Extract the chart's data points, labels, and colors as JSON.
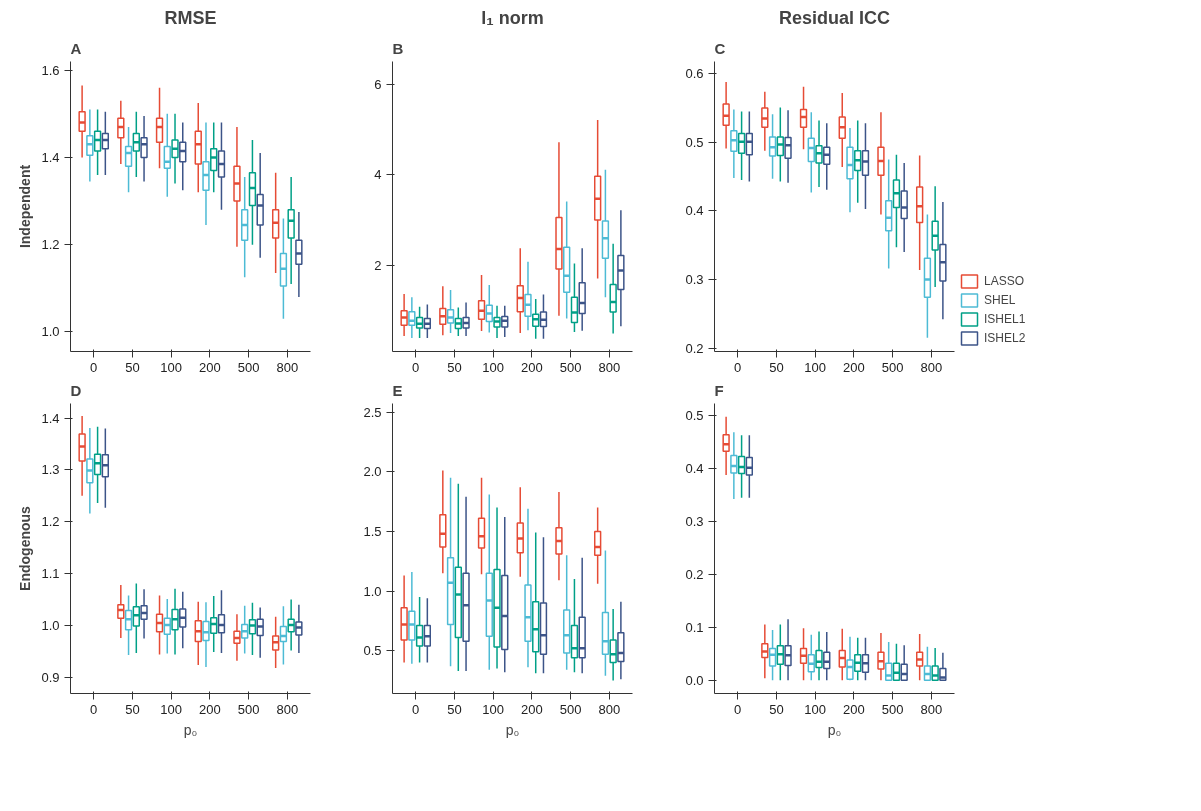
{
  "chart_data": [
    {
      "type": "box",
      "title": "RMSE",
      "ylabel": "Independent",
      "annotations": [
        "A"
      ],
      "legend": "right",
      "categories": [
        "0",
        "50",
        "100",
        "200",
        "500",
        "800"
      ],
      "ylim": [
        0.955,
        1.62
      ],
      "yticks": [
        {
          "value": 1.0,
          "label": "1.0"
        },
        {
          "value": 1.2,
          "label": "1.2"
        },
        {
          "value": 1.4,
          "label": "1.4"
        },
        {
          "value": 1.6,
          "label": "1.6"
        }
      ],
      "grid": false,
      "series": [
        {
          "name": "LASSO",
          "color": "#e64b35",
          "boxes": [
            {
              "low": 1.4,
              "q1": 1.46,
              "median": 1.48,
              "q3": 1.505,
              "high": 1.565
            },
            {
              "low": 1.385,
              "q1": 1.445,
              "median": 1.47,
              "q3": 1.49,
              "high": 1.53
            },
            {
              "low": 1.375,
              "q1": 1.435,
              "median": 1.47,
              "q3": 1.49,
              "high": 1.56
            },
            {
              "low": 1.32,
              "q1": 1.385,
              "median": 1.43,
              "q3": 1.46,
              "high": 1.525
            },
            {
              "low": 1.195,
              "q1": 1.3,
              "median": 1.34,
              "q3": 1.38,
              "high": 1.47
            },
            {
              "low": 1.135,
              "q1": 1.215,
              "median": 1.25,
              "q3": 1.28,
              "high": 1.365
            }
          ]
        },
        {
          "name": "SHEL",
          "color": "#4dbbd5",
          "boxes": [
            {
              "low": 1.345,
              "q1": 1.405,
              "median": 1.43,
              "q3": 1.45,
              "high": 1.51
            },
            {
              "low": 1.32,
              "q1": 1.38,
              "median": 1.41,
              "q3": 1.425,
              "high": 1.47
            },
            {
              "low": 1.31,
              "q1": 1.375,
              "median": 1.39,
              "q3": 1.425,
              "high": 1.5
            },
            {
              "low": 1.245,
              "q1": 1.325,
              "median": 1.36,
              "q3": 1.39,
              "high": 1.48
            },
            {
              "low": 1.125,
              "q1": 1.21,
              "median": 1.245,
              "q3": 1.28,
              "high": 1.355
            },
            {
              "low": 1.03,
              "q1": 1.105,
              "median": 1.145,
              "q3": 1.18,
              "high": 1.26
            }
          ]
        },
        {
          "name": "ISHEL1",
          "color": "#00a087",
          "boxes": [
            {
              "low": 1.36,
              "q1": 1.415,
              "median": 1.44,
              "q3": 1.46,
              "high": 1.51
            },
            {
              "low": 1.355,
              "q1": 1.415,
              "median": 1.435,
              "q3": 1.455,
              "high": 1.505
            },
            {
              "low": 1.34,
              "q1": 1.4,
              "median": 1.42,
              "q3": 1.44,
              "high": 1.5
            },
            {
              "low": 1.32,
              "q1": 1.37,
              "median": 1.4,
              "q3": 1.42,
              "high": 1.48
            },
            {
              "low": 1.2,
              "q1": 1.29,
              "median": 1.33,
              "q3": 1.365,
              "high": 1.44
            },
            {
              "low": 1.11,
              "q1": 1.215,
              "median": 1.255,
              "q3": 1.28,
              "high": 1.355
            }
          ]
        },
        {
          "name": "ISHEL2",
          "color": "#3c5488",
          "boxes": [
            {
              "low": 1.36,
              "q1": 1.42,
              "median": 1.44,
              "q3": 1.455,
              "high": 1.505
            },
            {
              "low": 1.345,
              "q1": 1.4,
              "median": 1.43,
              "q3": 1.445,
              "high": 1.495
            },
            {
              "low": 1.325,
              "q1": 1.39,
              "median": 1.415,
              "q3": 1.435,
              "high": 1.48
            },
            {
              "low": 1.28,
              "q1": 1.355,
              "median": 1.385,
              "q3": 1.415,
              "high": 1.48
            },
            {
              "low": 1.17,
              "q1": 1.245,
              "median": 1.29,
              "q3": 1.315,
              "high": 1.41
            },
            {
              "low": 1.08,
              "q1": 1.155,
              "median": 1.18,
              "q3": 1.21,
              "high": 1.275
            }
          ]
        }
      ]
    },
    {
      "type": "box",
      "title": "l₁ norm",
      "annotations": [
        "B"
      ],
      "categories": [
        "0",
        "50",
        "100",
        "200",
        "500",
        "800"
      ],
      "ylim": [
        0.1,
        6.5
      ],
      "yticks": [
        2,
        4,
        6
      ],
      "grid": false,
      "series": [
        {
          "color": "#e64b35",
          "boxes": [
            {
              "low": 0.44,
              "q1": 0.68,
              "median": 0.85,
              "q3": 1.0,
              "high": 1.37
            },
            {
              "low": 0.46,
              "q1": 0.7,
              "median": 0.88,
              "q3": 1.05,
              "high": 1.54
            },
            {
              "low": 0.55,
              "q1": 0.81,
              "median": 1.0,
              "q3": 1.22,
              "high": 1.79
            },
            {
              "low": 0.51,
              "q1": 0.98,
              "median": 1.28,
              "q3": 1.55,
              "high": 2.38
            },
            {
              "low": 0.89,
              "q1": 1.92,
              "median": 2.36,
              "q3": 3.06,
              "high": 4.72
            },
            {
              "low": 1.71,
              "q1": 3.0,
              "median": 3.47,
              "q3": 3.97,
              "high": 5.21
            }
          ]
        },
        {
          "color": "#4dbbd5",
          "boxes": [
            {
              "low": 0.4,
              "q1": 0.68,
              "median": 0.78,
              "q3": 0.98,
              "high": 1.3
            },
            {
              "low": 0.51,
              "q1": 0.73,
              "median": 0.85,
              "q3": 1.02,
              "high": 1.46
            },
            {
              "low": 0.52,
              "q1": 0.76,
              "median": 0.94,
              "q3": 1.12,
              "high": 1.57
            },
            {
              "low": 0.57,
              "q1": 0.88,
              "median": 1.13,
              "q3": 1.36,
              "high": 2.08
            },
            {
              "low": 0.83,
              "q1": 1.41,
              "median": 1.77,
              "q3": 2.4,
              "high": 3.41
            },
            {
              "low": 1.3,
              "q1": 2.16,
              "median": 2.6,
              "q3": 2.98,
              "high": 4.11
            }
          ]
        },
        {
          "color": "#00a087",
          "boxes": [
            {
              "low": 0.4,
              "q1": 0.62,
              "median": 0.71,
              "q3": 0.85,
              "high": 1.09
            },
            {
              "low": 0.44,
              "q1": 0.61,
              "median": 0.72,
              "q3": 0.83,
              "high": 1.07
            },
            {
              "low": 0.4,
              "q1": 0.64,
              "median": 0.76,
              "q3": 0.85,
              "high": 1.11
            },
            {
              "low": 0.38,
              "q1": 0.66,
              "median": 0.81,
              "q3": 0.92,
              "high": 1.26
            },
            {
              "low": 0.53,
              "q1": 0.74,
              "median": 0.96,
              "q3": 1.3,
              "high": 2.04
            },
            {
              "low": 0.5,
              "q1": 0.97,
              "median": 1.19,
              "q3": 1.58,
              "high": 2.48
            }
          ]
        },
        {
          "color": "#3c5488",
          "boxes": [
            {
              "low": 0.4,
              "q1": 0.61,
              "median": 0.71,
              "q3": 0.83,
              "high": 1.14
            },
            {
              "low": 0.44,
              "q1": 0.62,
              "median": 0.73,
              "q3": 0.85,
              "high": 1.18
            },
            {
              "low": 0.42,
              "q1": 0.64,
              "median": 0.78,
              "q3": 0.87,
              "high": 1.11
            },
            {
              "low": 0.38,
              "q1": 0.65,
              "median": 0.8,
              "q3": 0.97,
              "high": 1.36
            },
            {
              "low": 0.56,
              "q1": 0.94,
              "median": 1.17,
              "q3": 1.62,
              "high": 2.38
            },
            {
              "low": 0.66,
              "q1": 1.47,
              "median": 1.89,
              "q3": 2.22,
              "high": 3.22
            }
          ]
        }
      ]
    },
    {
      "type": "box",
      "title": "Residual ICC",
      "annotations": [
        "C"
      ],
      "categories": [
        "0",
        "50",
        "100",
        "200",
        "500",
        "800"
      ],
      "ylim": [
        0.195,
        0.618
      ],
      "yticks": [
        0.2,
        0.3,
        0.4,
        0.5,
        0.6
      ],
      "grid": false,
      "series": [
        {
          "color": "#e64b35",
          "boxes": [
            {
              "low": 0.491,
              "q1": 0.525,
              "median": 0.539,
              "q3": 0.556,
              "high": 0.588
            },
            {
              "low": 0.488,
              "q1": 0.522,
              "median": 0.535,
              "q3": 0.55,
              "high": 0.574
            },
            {
              "low": 0.49,
              "q1": 0.522,
              "median": 0.537,
              "q3": 0.548,
              "high": 0.581
            },
            {
              "low": 0.464,
              "q1": 0.506,
              "median": 0.522,
              "q3": 0.537,
              "high": 0.572
            },
            {
              "low": 0.395,
              "q1": 0.452,
              "median": 0.473,
              "q3": 0.493,
              "high": 0.544
            },
            {
              "low": 0.314,
              "q1": 0.383,
              "median": 0.407,
              "q3": 0.435,
              "high": 0.481
            }
          ]
        },
        {
          "color": "#4dbbd5",
          "boxes": [
            {
              "low": 0.448,
              "q1": 0.487,
              "median": 0.503,
              "q3": 0.517,
              "high": 0.548
            },
            {
              "low": 0.447,
              "q1": 0.48,
              "median": 0.493,
              "q3": 0.508,
              "high": 0.541
            },
            {
              "low": 0.427,
              "q1": 0.472,
              "median": 0.492,
              "q3": 0.506,
              "high": 0.544
            },
            {
              "low": 0.398,
              "q1": 0.447,
              "median": 0.467,
              "q3": 0.493,
              "high": 0.521
            },
            {
              "low": 0.316,
              "q1": 0.371,
              "median": 0.39,
              "q3": 0.415,
              "high": 0.475
            },
            {
              "low": 0.215,
              "q1": 0.274,
              "median": 0.3,
              "q3": 0.331,
              "high": 0.395
            }
          ]
        },
        {
          "color": "#00a087",
          "boxes": [
            {
              "low": 0.445,
              "q1": 0.484,
              "median": 0.501,
              "q3": 0.513,
              "high": 0.545
            },
            {
              "low": 0.443,
              "q1": 0.481,
              "median": 0.497,
              "q3": 0.508,
              "high": 0.551
            },
            {
              "low": 0.435,
              "q1": 0.47,
              "median": 0.484,
              "q3": 0.495,
              "high": 0.532
            },
            {
              "low": 0.412,
              "q1": 0.459,
              "median": 0.474,
              "q3": 0.488,
              "high": 0.532
            },
            {
              "low": 0.347,
              "q1": 0.405,
              "median": 0.426,
              "q3": 0.445,
              "high": 0.482
            },
            {
              "low": 0.289,
              "q1": 0.343,
              "median": 0.364,
              "q3": 0.385,
              "high": 0.436
            }
          ]
        },
        {
          "color": "#3c5488",
          "boxes": [
            {
              "low": 0.443,
              "q1": 0.482,
              "median": 0.501,
              "q3": 0.513,
              "high": 0.545
            },
            {
              "low": 0.441,
              "q1": 0.477,
              "median": 0.496,
              "q3": 0.507,
              "high": 0.547
            },
            {
              "low": 0.431,
              "q1": 0.468,
              "median": 0.482,
              "q3": 0.493,
              "high": 0.528
            },
            {
              "low": 0.403,
              "q1": 0.452,
              "median": 0.472,
              "q3": 0.488,
              "high": 0.528
            },
            {
              "low": 0.34,
              "q1": 0.389,
              "median": 0.405,
              "q3": 0.429,
              "high": 0.47
            },
            {
              "low": 0.242,
              "q1": 0.298,
              "median": 0.325,
              "q3": 0.351,
              "high": 0.413
            }
          ]
        }
      ]
    },
    {
      "type": "box",
      "ylabel": "Endogenous",
      "xlabel": "p₀",
      "annotations": [
        "D"
      ],
      "categories": [
        "0",
        "50",
        "100",
        "200",
        "500",
        "800"
      ],
      "ylim": [
        0.869,
        1.428
      ],
      "yticks": [
        0.9,
        {
          "value": 1.0,
          "label": "1.0"
        },
        1.1,
        1.2,
        1.3,
        1.4
      ],
      "grid": false,
      "series": [
        {
          "color": "#e64b35",
          "boxes": [
            {
              "low": 1.25,
              "q1": 1.317,
              "median": 1.345,
              "q3": 1.369,
              "high": 1.404
            },
            {
              "low": 0.976,
              "q1": 1.014,
              "median": 1.03,
              "q3": 1.04,
              "high": 1.078
            },
            {
              "low": 0.944,
              "q1": 0.988,
              "median": 1.005,
              "q3": 1.022,
              "high": 1.058
            },
            {
              "low": 0.924,
              "q1": 0.969,
              "median": 0.989,
              "q3": 1.009,
              "high": 1.046
            },
            {
              "low": 0.932,
              "q1": 0.966,
              "median": 0.976,
              "q3": 0.989,
              "high": 1.022
            },
            {
              "low": 0.918,
              "q1": 0.953,
              "median": 0.968,
              "q3": 0.98,
              "high": 1.017
            }
          ]
        },
        {
          "color": "#4dbbd5",
          "boxes": [
            {
              "low": 1.216,
              "q1": 1.275,
              "median": 1.299,
              "q3": 1.321,
              "high": 1.381
            },
            {
              "low": 0.943,
              "q1": 0.992,
              "median": 1.012,
              "q3": 1.029,
              "high": 1.058
            },
            {
              "low": 0.946,
              "q1": 0.983,
              "median": 1.001,
              "q3": 1.014,
              "high": 1.051
            },
            {
              "low": 0.92,
              "q1": 0.971,
              "median": 0.987,
              "q3": 1.008,
              "high": 1.045
            },
            {
              "low": 0.946,
              "q1": 0.976,
              "median": 0.989,
              "q3": 1.002,
              "high": 1.038
            },
            {
              "low": 0.925,
              "q1": 0.969,
              "median": 0.98,
              "q3": 0.998,
              "high": 1.037
            }
          ]
        },
        {
          "color": "#00a087",
          "boxes": [
            {
              "low": 1.236,
              "q1": 1.291,
              "median": 1.313,
              "q3": 1.33,
              "high": 1.383
            },
            {
              "low": 0.947,
              "q1": 0.999,
              "median": 1.02,
              "q3": 1.036,
              "high": 1.081
            },
            {
              "low": 0.944,
              "q1": 0.992,
              "median": 1.012,
              "q3": 1.031,
              "high": 1.071
            },
            {
              "low": 0.949,
              "q1": 0.985,
              "median": 1.003,
              "q3": 1.015,
              "high": 1.057
            },
            {
              "low": 0.943,
              "q1": 0.984,
              "median": 1.0,
              "q3": 1.011,
              "high": 1.044
            },
            {
              "low": 0.952,
              "q1": 0.988,
              "median": 1.001,
              "q3": 1.012,
              "high": 1.05
            }
          ]
        },
        {
          "color": "#3c5488",
          "boxes": [
            {
              "low": 1.227,
              "q1": 1.287,
              "median": 1.309,
              "q3": 1.329,
              "high": 1.38
            },
            {
              "low": 0.975,
              "q1": 1.012,
              "median": 1.024,
              "q3": 1.038,
              "high": 1.07
            },
            {
              "low": 0.956,
              "q1": 0.997,
              "median": 1.015,
              "q3": 1.032,
              "high": 1.065
            },
            {
              "low": 0.947,
              "q1": 0.986,
              "median": 1.001,
              "q3": 1.021,
              "high": 1.068
            },
            {
              "low": 0.938,
              "q1": 0.981,
              "median": 0.998,
              "q3": 1.012,
              "high": 1.035
            },
            {
              "low": 0.947,
              "q1": 0.982,
              "median": 0.996,
              "q3": 1.007,
              "high": 1.04
            }
          ]
        }
      ]
    },
    {
      "type": "box",
      "xlabel": "p₀",
      "annotations": [
        "E"
      ],
      "categories": [
        "0",
        "50",
        "100",
        "200",
        "500",
        "800"
      ],
      "ylim": [
        0.141,
        2.572
      ],
      "yticks": [
        {
          "value": 0.5,
          "label": "0.5"
        },
        {
          "value": 1.0,
          "label": "1.0"
        },
        {
          "value": 1.5,
          "label": "1.5"
        },
        {
          "value": 2.0,
          "label": "2.0"
        },
        {
          "value": 2.5,
          "label": "2.5"
        }
      ],
      "grid": false,
      "series": [
        {
          "color": "#e64b35",
          "boxes": [
            {
              "low": 0.4,
              "q1": 0.59,
              "median": 0.72,
              "q3": 0.86,
              "high": 1.13
            },
            {
              "low": 1.15,
              "q1": 1.37,
              "median": 1.48,
              "q3": 1.64,
              "high": 2.01
            },
            {
              "low": 1.14,
              "q1": 1.36,
              "median": 1.46,
              "q3": 1.61,
              "high": 1.95
            },
            {
              "low": 1.12,
              "q1": 1.32,
              "median": 1.44,
              "q3": 1.57,
              "high": 1.87
            },
            {
              "low": 1.09,
              "q1": 1.31,
              "median": 1.42,
              "q3": 1.53,
              "high": 1.83
            },
            {
              "low": 1.06,
              "q1": 1.3,
              "median": 1.37,
              "q3": 1.5,
              "high": 1.7
            }
          ]
        },
        {
          "color": "#4dbbd5",
          "boxes": [
            {
              "low": 0.39,
              "q1": 0.59,
              "median": 0.72,
              "q3": 0.83,
              "high": 1.16
            },
            {
              "low": 0.37,
              "q1": 0.72,
              "median": 1.07,
              "q3": 1.28,
              "high": 1.95
            },
            {
              "low": 0.34,
              "q1": 0.62,
              "median": 0.92,
              "q3": 1.15,
              "high": 1.81
            },
            {
              "low": 0.36,
              "q1": 0.58,
              "median": 0.78,
              "q3": 1.05,
              "high": 1.69
            },
            {
              "low": 0.34,
              "q1": 0.48,
              "median": 0.63,
              "q3": 0.84,
              "high": 1.3
            },
            {
              "low": 0.29,
              "q1": 0.47,
              "median": 0.58,
              "q3": 0.82,
              "high": 1.34
            }
          ]
        },
        {
          "color": "#00a087",
          "boxes": [
            {
              "low": 0.4,
              "q1": 0.54,
              "median": 0.61,
              "q3": 0.71,
              "high": 0.95
            },
            {
              "low": 0.33,
              "q1": 0.61,
              "median": 0.97,
              "q3": 1.2,
              "high": 1.9
            },
            {
              "low": 0.35,
              "q1": 0.53,
              "median": 0.86,
              "q3": 1.18,
              "high": 1.7
            },
            {
              "low": 0.31,
              "q1": 0.49,
              "median": 0.68,
              "q3": 0.91,
              "high": 1.49
            },
            {
              "low": 0.32,
              "q1": 0.44,
              "median": 0.52,
              "q3": 0.71,
              "high": 1.1
            },
            {
              "low": 0.25,
              "q1": 0.4,
              "median": 0.47,
              "q3": 0.59,
              "high": 0.85
            }
          ]
        },
        {
          "color": "#3c5488",
          "boxes": [
            {
              "low": 0.4,
              "q1": 0.54,
              "median": 0.62,
              "q3": 0.71,
              "high": 0.94
            },
            {
              "low": 0.33,
              "q1": 0.58,
              "median": 0.88,
              "q3": 1.15,
              "high": 1.79
            },
            {
              "low": 0.32,
              "q1": 0.51,
              "median": 0.79,
              "q3": 1.13,
              "high": 1.62
            },
            {
              "low": 0.31,
              "q1": 0.47,
              "median": 0.63,
              "q3": 0.9,
              "high": 1.45
            },
            {
              "low": 0.31,
              "q1": 0.44,
              "median": 0.52,
              "q3": 0.78,
              "high": 1.28
            },
            {
              "low": 0.26,
              "q1": 0.41,
              "median": 0.48,
              "q3": 0.65,
              "high": 0.91
            }
          ]
        }
      ]
    },
    {
      "type": "box",
      "xlabel": "p₀",
      "annotations": [
        "F"
      ],
      "categories": [
        "0",
        "50",
        "100",
        "200",
        "500",
        "800"
      ],
      "ylim": [
        -0.025,
        0.522
      ],
      "yticks": [
        {
          "value": 0,
          "label": "0.0"
        },
        0.1,
        0.2,
        0.3,
        0.4,
        0.5
      ],
      "grid": false,
      "series": [
        {
          "color": "#e64b35",
          "boxes": [
            {
              "low": 0.387,
              "q1": 0.432,
              "median": 0.445,
              "q3": 0.463,
              "high": 0.497
            },
            {
              "low": 0.004,
              "q1": 0.043,
              "median": 0.054,
              "q3": 0.069,
              "high": 0.105
            },
            {
              "low": 0.0,
              "q1": 0.032,
              "median": 0.046,
              "q3": 0.06,
              "high": 0.098
            },
            {
              "low": 0.0,
              "q1": 0.025,
              "median": 0.042,
              "q3": 0.056,
              "high": 0.097
            },
            {
              "low": 0.0,
              "q1": 0.021,
              "median": 0.036,
              "q3": 0.053,
              "high": 0.089
            },
            {
              "low": 0.0,
              "q1": 0.027,
              "median": 0.039,
              "q3": 0.053,
              "high": 0.087
            }
          ]
        },
        {
          "color": "#4dbbd5",
          "boxes": [
            {
              "low": 0.342,
              "q1": 0.391,
              "median": 0.404,
              "q3": 0.424,
              "high": 0.468
            },
            {
              "low": 0.0,
              "q1": 0.027,
              "median": 0.048,
              "q3": 0.06,
              "high": 0.095
            },
            {
              "low": 0.0,
              "q1": 0.016,
              "median": 0.031,
              "q3": 0.048,
              "high": 0.086
            },
            {
              "low": 0.0,
              "q1": 0.002,
              "median": 0.025,
              "q3": 0.038,
              "high": 0.082
            },
            {
              "low": 0.0,
              "q1": 0.0,
              "median": 0.009,
              "q3": 0.032,
              "high": 0.072
            },
            {
              "low": 0.0,
              "q1": 0.0,
              "median": 0.012,
              "q3": 0.027,
              "high": 0.063
            }
          ]
        },
        {
          "color": "#00a087",
          "boxes": [
            {
              "low": 0.344,
              "q1": 0.39,
              "median": 0.402,
              "q3": 0.422,
              "high": 0.462
            },
            {
              "low": 0.0,
              "q1": 0.03,
              "median": 0.049,
              "q3": 0.065,
              "high": 0.105
            },
            {
              "low": 0.0,
              "q1": 0.024,
              "median": 0.035,
              "q3": 0.056,
              "high": 0.092
            },
            {
              "low": 0.0,
              "q1": 0.017,
              "median": 0.033,
              "q3": 0.048,
              "high": 0.08
            },
            {
              "low": 0.0,
              "q1": 0.0,
              "median": 0.014,
              "q3": 0.032,
              "high": 0.069
            },
            {
              "low": 0.0,
              "q1": 0.0,
              "median": 0.009,
              "q3": 0.027,
              "high": 0.061
            }
          ]
        },
        {
          "color": "#3c5488",
          "boxes": [
            {
              "low": 0.344,
              "q1": 0.387,
              "median": 0.401,
              "q3": 0.42,
              "high": 0.462
            },
            {
              "low": 0.0,
              "q1": 0.028,
              "median": 0.047,
              "q3": 0.065,
              "high": 0.115
            },
            {
              "low": 0.0,
              "q1": 0.022,
              "median": 0.035,
              "q3": 0.053,
              "high": 0.091
            },
            {
              "low": 0.0,
              "q1": 0.015,
              "median": 0.032,
              "q3": 0.048,
              "high": 0.08
            },
            {
              "low": 0.0,
              "q1": 0.0,
              "median": 0.012,
              "q3": 0.03,
              "high": 0.066
            },
            {
              "low": 0.0,
              "q1": 0.0,
              "median": 0.005,
              "q3": 0.022,
              "high": 0.052
            }
          ]
        }
      ]
    }
  ]
}
